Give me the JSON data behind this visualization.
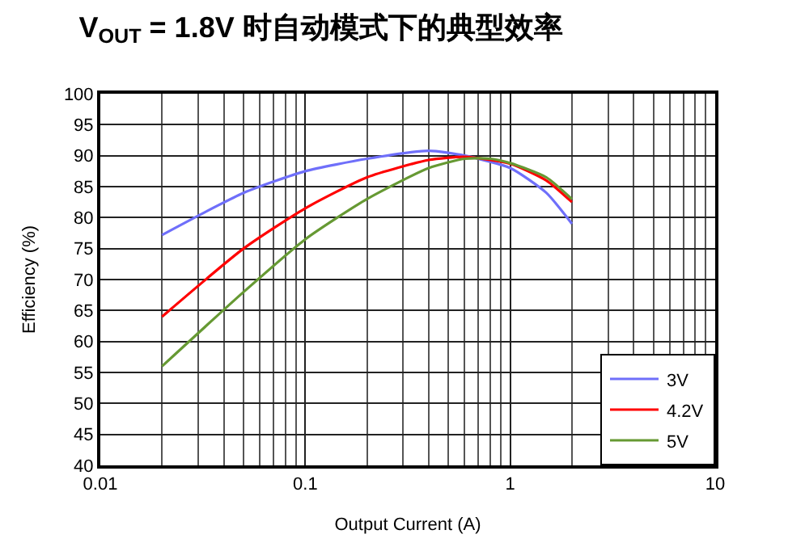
{
  "chart_data": {
    "type": "line",
    "title": "V$_{OUT}$ = 1.8V 时自动模式下的典型效率",
    "xlabel": "Output Current (A)",
    "ylabel": "Efficiency (%)",
    "log": "x",
    "grid": true,
    "legend": "bottom right",
    "marker": "none",
    "line_style": "solid",
    "xlim": [
      0.01,
      10
    ],
    "xticks": [
      0.01,
      0.1,
      1,
      10
    ],
    "ylim": [
      40,
      100
    ],
    "yticks": [
      40,
      45,
      50,
      55,
      60,
      65,
      70,
      75,
      80,
      85,
      90,
      95,
      100
    ],
    "series": [
      {
        "name": "3V",
        "color": "#6f6ffa",
        "x": [
          0.02,
          0.05,
          0.1,
          0.2,
          0.4,
          0.6,
          1,
          1.5,
          2
        ],
        "values": [
          77.2,
          84,
          87.5,
          89.5,
          90.8,
          90,
          88,
          84,
          79
        ]
      },
      {
        "name": "4.2V",
        "color": "#ff0000",
        "x": [
          0.02,
          0.05,
          0.1,
          0.2,
          0.4,
          0.6,
          1,
          1.5,
          2
        ],
        "values": [
          64,
          75,
          81.5,
          86.5,
          89.3,
          89.8,
          88.7,
          86,
          82.5
        ]
      },
      {
        "name": "5V",
        "color": "#669933",
        "x": [
          0.02,
          0.05,
          0.1,
          0.2,
          0.4,
          0.6,
          0.8,
          1,
          1.5,
          2
        ],
        "values": [
          56,
          68,
          76.5,
          83,
          88,
          89.5,
          89.5,
          88.8,
          86.5,
          83
        ]
      }
    ]
  }
}
